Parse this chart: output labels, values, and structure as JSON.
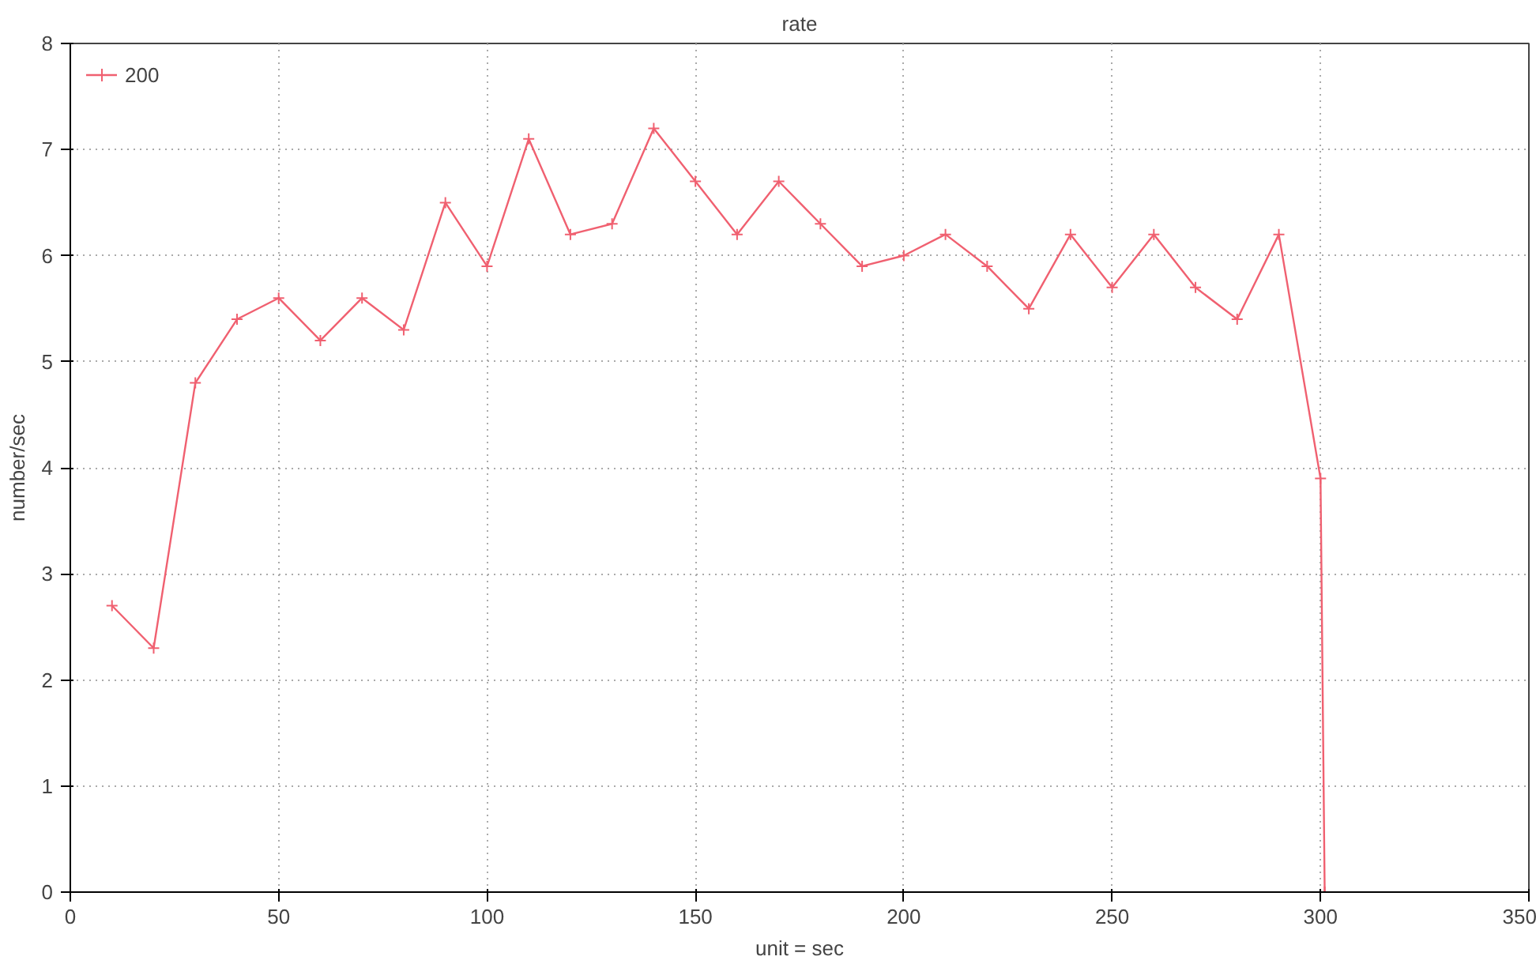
{
  "chart_data": {
    "type": "line",
    "title": "rate",
    "xlabel": "unit = sec",
    "ylabel": "number/sec",
    "x": [
      10,
      20,
      30,
      40,
      50,
      60,
      70,
      80,
      90,
      100,
      110,
      120,
      130,
      140,
      150,
      160,
      170,
      180,
      190,
      200,
      210,
      220,
      230,
      240,
      250,
      260,
      270,
      280,
      290,
      300,
      301
    ],
    "series": [
      {
        "name": "200",
        "color": "#f06070",
        "values": [
          2.7,
          2.3,
          4.8,
          5.4,
          5.6,
          5.2,
          5.6,
          5.3,
          6.5,
          5.9,
          7.1,
          6.2,
          6.3,
          7.2,
          6.7,
          6.2,
          6.7,
          6.3,
          5.9,
          6.0,
          6.2,
          5.9,
          5.5,
          6.2,
          5.7,
          6.2,
          5.7,
          5.4,
          6.2,
          3.9,
          0
        ]
      }
    ],
    "xlim": [
      0,
      350
    ],
    "xticks": [
      0,
      50,
      100,
      150,
      200,
      250,
      300,
      350
    ],
    "ylim": [
      0,
      8
    ],
    "yticks": [
      0,
      1,
      2,
      3,
      4,
      5,
      6,
      7,
      8
    ],
    "grid": true,
    "legend": "top left",
    "marker": "cross",
    "line_style": "solid"
  }
}
